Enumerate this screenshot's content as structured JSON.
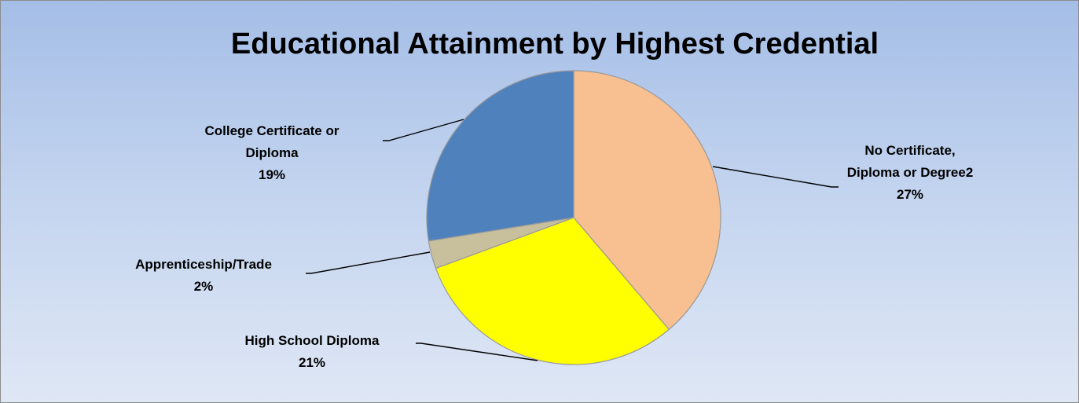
{
  "chart_data": {
    "type": "pie",
    "title": "Educational Attainment by Highest Credential",
    "slices": [
      {
        "label_lines": [
          "No Certificate,",
          "Diploma or Degree2"
        ],
        "percent_label": "27%",
        "share": 0.38,
        "color": "#f8bf90"
      },
      {
        "label_lines": [
          "High School Diploma"
        ],
        "percent_label": "21%",
        "share": 0.3,
        "color": "#ffff00"
      },
      {
        "label_lines": [
          "Apprenticeship/Trade"
        ],
        "percent_label": "2%",
        "share": 0.03,
        "color": "#c8bf9c"
      },
      {
        "label_lines": [
          "College Certificate or",
          "Diploma"
        ],
        "percent_label": "19%",
        "share": 0.27,
        "color": "#4f81bd"
      }
    ],
    "start_angle_deg": 0,
    "direction": "clockwise",
    "slice_stroke_color": "#9a9a9a",
    "leader_line_color": "#000000",
    "background_gradient": [
      "#a5bee7",
      "#dfe7f5"
    ]
  }
}
